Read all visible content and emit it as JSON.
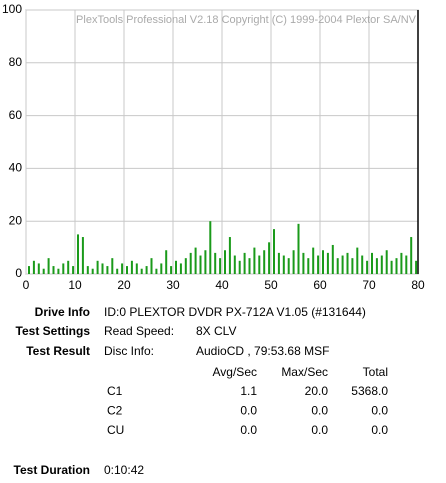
{
  "chart_data": {
    "type": "bar",
    "watermark": "PlexTools Professional V2.18 Copyright (C) 1999-2004 Plextor SA/NV",
    "x": [
      0,
      1,
      2,
      3,
      4,
      5,
      6,
      7,
      8,
      9,
      10,
      11,
      12,
      13,
      14,
      15,
      16,
      17,
      18,
      19,
      20,
      21,
      22,
      23,
      24,
      25,
      26,
      27,
      28,
      29,
      30,
      31,
      32,
      33,
      34,
      35,
      36,
      37,
      38,
      39,
      40,
      41,
      42,
      43,
      44,
      45,
      46,
      47,
      48,
      49,
      50,
      51,
      52,
      53,
      54,
      55,
      56,
      57,
      58,
      59,
      60,
      61,
      62,
      63,
      64,
      65,
      66,
      67,
      68,
      69,
      70,
      71,
      72,
      73,
      74,
      75,
      76,
      77,
      78,
      79
    ],
    "series": [
      {
        "name": "C1",
        "color": "#1a9a1a",
        "values": [
          3,
          5,
          4,
          2,
          6,
          3,
          2,
          4,
          5,
          3,
          15,
          14,
          3,
          2,
          5,
          4,
          3,
          6,
          2,
          4,
          3,
          5,
          4,
          2,
          3,
          6,
          2,
          4,
          9,
          3,
          5,
          4,
          6,
          8,
          10,
          7,
          9,
          20,
          8,
          6,
          9,
          14,
          7,
          5,
          8,
          6,
          10,
          7,
          9,
          12,
          17,
          8,
          7,
          6,
          9,
          19,
          8,
          6,
          10,
          7,
          9,
          8,
          11,
          6,
          7,
          8,
          6,
          10,
          7,
          5,
          8,
          6,
          7,
          9,
          5,
          6,
          8,
          7,
          14,
          5
        ]
      }
    ],
    "xlim": [
      0,
      80
    ],
    "ylim": [
      0,
      100
    ],
    "xticks": [
      0,
      10,
      20,
      30,
      40,
      50,
      60,
      70,
      80
    ],
    "yticks": [
      0,
      20,
      40,
      60,
      80,
      100
    ],
    "grid": true
  },
  "info": {
    "drive_info": {
      "label": "Drive Info",
      "value": "ID:0 PLEXTOR DVDR PX-712A V1.05 (#131644)"
    },
    "test_settings": {
      "label": "Test Settings",
      "key": "Read Speed:",
      "value": "8X CLV"
    },
    "test_result": {
      "label": "Test Result",
      "key": "Disc Info:",
      "value": "AudioCD , 79:53.68 MSF"
    },
    "table": {
      "header": [
        "Avg/Sec",
        "Max/Sec",
        "Total"
      ],
      "rows": [
        [
          "C1",
          "1.1",
          "20.0",
          "5368.0"
        ],
        [
          "C2",
          "0.0",
          "0.0",
          "0.0"
        ],
        [
          "CU",
          "0.0",
          "0.0",
          "0.0"
        ]
      ]
    },
    "test_duration": {
      "label": "Test Duration",
      "value": "0:10:42"
    }
  }
}
